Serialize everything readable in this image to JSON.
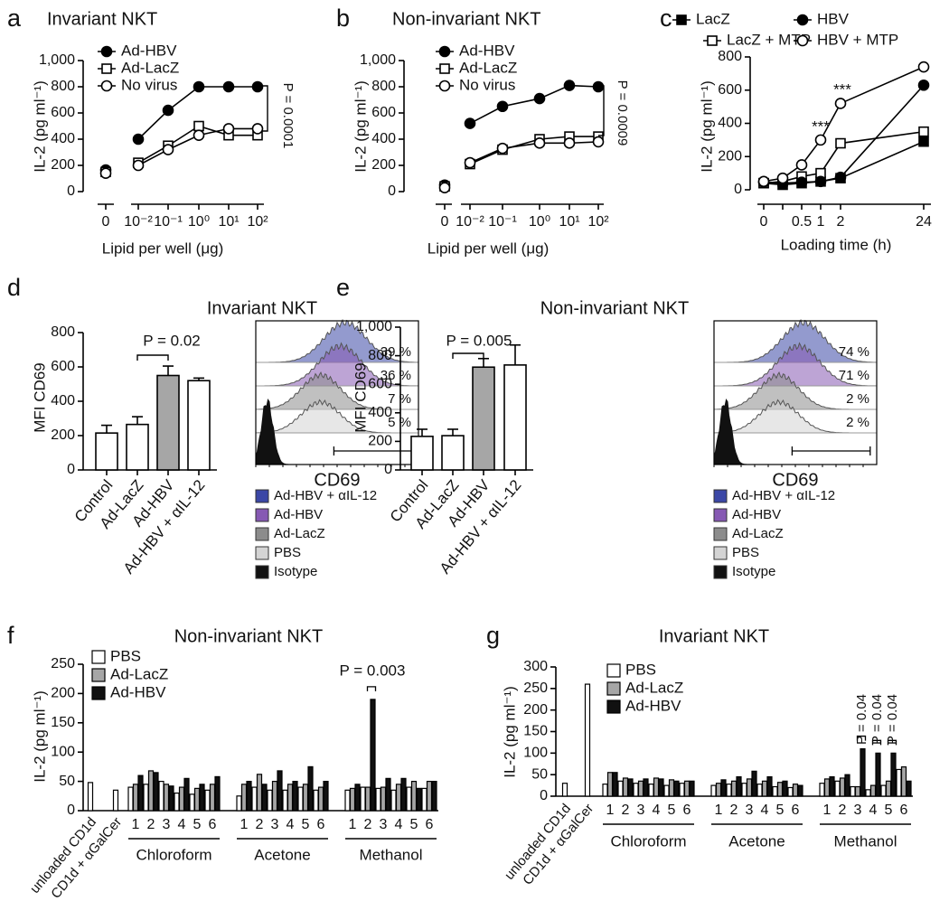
{
  "chart_data": [
    {
      "type": "line",
      "panel": "a",
      "title": "Invariant NKT",
      "xlabel": "Lipid per well (μg)",
      "ylabel": "IL-2 (pg ml⁻¹)",
      "categories": [
        "0",
        "10⁻²",
        "10⁻¹",
        "10⁰",
        "10¹",
        "10²"
      ],
      "series": [
        {
          "name": "Ad-HBV",
          "color": "#000000",
          "marker": "circle",
          "filled": true,
          "values": [
            165,
            400,
            620,
            800,
            800,
            800
          ]
        },
        {
          "name": "Ad-LacZ",
          "color": "#000000",
          "marker": "square",
          "filled": false,
          "values": [
            150,
            220,
            350,
            500,
            430,
            430
          ]
        },
        {
          "name": "No virus",
          "color": "#000000",
          "marker": "circle",
          "filled": false,
          "values": [
            140,
            200,
            320,
            430,
            480,
            480
          ]
        }
      ],
      "ylim": [
        0,
        1000
      ],
      "yticks": [
        0,
        200,
        400,
        600,
        800,
        {
          "value": 1000,
          "label": "1,000"
        }
      ],
      "annotations": [
        "P = 0.0001"
      ]
    },
    {
      "type": "line",
      "panel": "b",
      "title": "Non-invariant NKT",
      "xlabel": "Lipid per well (μg)",
      "ylabel": "IL-2 (pg ml⁻¹)",
      "categories": [
        "0",
        "10⁻²",
        "10⁻¹",
        "10⁰",
        "10¹",
        "10²"
      ],
      "series": [
        {
          "name": "Ad-HBV",
          "color": "#000000",
          "marker": "circle",
          "filled": true,
          "values": [
            50,
            520,
            650,
            710,
            810,
            800
          ]
        },
        {
          "name": "Ad-LacZ",
          "color": "#000000",
          "marker": "square",
          "filled": false,
          "values": [
            40,
            210,
            320,
            400,
            420,
            420
          ]
        },
        {
          "name": "No virus",
          "color": "#000000",
          "marker": "circle",
          "filled": false,
          "values": [
            30,
            220,
            330,
            370,
            370,
            380
          ]
        }
      ],
      "ylim": [
        0,
        1000
      ],
      "yticks": [
        0,
        200,
        400,
        600,
        800,
        {
          "value": 1000,
          "label": "1,000"
        }
      ],
      "annotations": [
        "P = 0.0009"
      ]
    },
    {
      "type": "line",
      "panel": "c",
      "xlabel": "Loading time (h)",
      "ylabel": "IL-2 (pg ml⁻¹)",
      "categories": [
        "0",
        null,
        "0.5",
        "1",
        "2",
        "24"
      ],
      "series": [
        {
          "name": "LacZ",
          "color": "#000000",
          "marker": "square",
          "filled": true,
          "values": [
            40,
            30,
            40,
            50,
            70,
            290
          ]
        },
        {
          "name": "LacZ + MTP",
          "color": "#000000",
          "marker": "square",
          "filled": false,
          "values": [
            40,
            50,
            80,
            100,
            280,
            350
          ]
        },
        {
          "name": "HBV",
          "color": "#000000",
          "marker": "circle",
          "filled": true,
          "values": [
            45,
            40,
            45,
            50,
            75,
            630
          ]
        },
        {
          "name": "HBV + MTP",
          "color": "#000000",
          "marker": "circle",
          "filled": false,
          "values": [
            50,
            70,
            150,
            300,
            520,
            740
          ]
        }
      ],
      "ylim": [
        0,
        800
      ],
      "yticks": [
        0,
        200,
        400,
        600,
        800
      ],
      "annotations": [
        "***",
        "***"
      ]
    },
    {
      "type": "bar",
      "panel": "d",
      "title": "Invariant NKT",
      "ylabel": "MFI CD69",
      "categories": [
        "Control",
        "Ad-LacZ",
        "Ad-HBV",
        "Ad-HBV + αIL-12"
      ],
      "values": [
        215,
        265,
        550,
        520
      ],
      "errors": [
        45,
        45,
        55,
        15
      ],
      "colors": [
        "#ffffff",
        "#ffffff",
        "#a6a6a6",
        "#ffffff"
      ],
      "ylim": [
        0,
        800
      ],
      "yticks": [
        0,
        200,
        400,
        600,
        800
      ],
      "annotations": [
        "P = 0.02"
      ],
      "inset": {
        "xlabel": "CD69",
        "values": [
          39,
          36,
          7,
          5
        ],
        "value_labels": [
          "39 %",
          "36 %",
          "7 %",
          "5 %"
        ],
        "series": [
          {
            "name": "Ad-HBV + αIL-12",
            "color": "#3b47a6"
          },
          {
            "name": "Ad-HBV",
            "color": "#8659b3"
          },
          {
            "name": "Ad-LacZ",
            "color": "#8c8c8c"
          },
          {
            "name": "PBS",
            "color": "#d4d4d4"
          },
          {
            "name": "Isotype",
            "color": "#111111"
          }
        ]
      }
    },
    {
      "type": "bar",
      "panel": "e",
      "title": "Non-invariant NKT",
      "ylabel": "MFI CD69",
      "categories": [
        "Control",
        "Ad-LacZ",
        "Ad-HBV",
        "Ad-HBV + αIL-12"
      ],
      "values": [
        235,
        240,
        720,
        735
      ],
      "errors": [
        50,
        45,
        60,
        140
      ],
      "colors": [
        "#ffffff",
        "#ffffff",
        "#a6a6a6",
        "#ffffff"
      ],
      "ylim": [
        0,
        1000
      ],
      "yticks": [
        0,
        200,
        400,
        600,
        800,
        {
          "value": 1000,
          "label": "1,000"
        }
      ],
      "annotations": [
        "P = 0.005"
      ],
      "inset": {
        "xlabel": "CD69",
        "values": [
          74,
          71,
          2,
          2
        ],
        "value_labels": [
          "74 %",
          "71 %",
          "2 %",
          "2 %"
        ],
        "series": [
          {
            "name": "Ad-HBV + αIL-12",
            "color": "#3b47a6"
          },
          {
            "name": "Ad-HBV",
            "color": "#8659b3"
          },
          {
            "name": "Ad-LacZ",
            "color": "#8c8c8c"
          },
          {
            "name": "PBS",
            "color": "#d4d4d4"
          },
          {
            "name": "Isotype",
            "color": "#111111"
          }
        ]
      }
    },
    {
      "type": "grouped_bar",
      "panel": "f",
      "title": "Non-invariant NKT",
      "ylabel": "IL-2 (pg ml⁻¹)",
      "categories": [
        "unloaded CD1d",
        "CD1d + αGalCer",
        "1",
        "2",
        "3",
        "4",
        "5",
        "6",
        "1",
        "2",
        "3",
        "4",
        "5",
        "6",
        "1",
        "2",
        "3",
        "4",
        "5",
        "6"
      ],
      "groups": [
        "Chloroform",
        "Acetone",
        "Methanol"
      ],
      "series": [
        {
          "name": "PBS",
          "color": "#ffffff",
          "values": [
            48,
            35,
            40,
            45,
            50,
            30,
            28,
            35,
            25,
            40,
            35,
            35,
            40,
            35,
            35,
            40,
            38,
            35,
            40,
            38
          ]
        },
        {
          "name": "Ad-LacZ",
          "color": "#a6a6a6",
          "values": [
            null,
            null,
            45,
            68,
            45,
            40,
            38,
            45,
            45,
            62,
            50,
            45,
            45,
            40,
            38,
            40,
            40,
            45,
            50,
            50
          ]
        },
        {
          "name": "Ad-HBV",
          "color": "#111111",
          "values": [
            null,
            null,
            60,
            65,
            42,
            55,
            45,
            58,
            50,
            45,
            68,
            50,
            75,
            50,
            45,
            190,
            55,
            55,
            38,
            50
          ]
        }
      ],
      "ylim": [
        0,
        250
      ],
      "yticks": [
        0,
        50,
        100,
        150,
        200,
        250
      ],
      "annotations": [
        "P = 0.003"
      ]
    },
    {
      "type": "grouped_bar",
      "panel": "g",
      "title": "Invariant NKT",
      "ylabel": "IL-2 (pg ml⁻¹)",
      "categories": [
        "unloaded CD1d",
        "CD1d + αGalCer",
        "1",
        "2",
        "3",
        "4",
        "5",
        "6",
        "1",
        "2",
        "3",
        "4",
        "5",
        "6",
        "1",
        "2",
        "3",
        "4",
        "5",
        "6"
      ],
      "groups": [
        "Chloroform",
        "Acetone",
        "Methanol"
      ],
      "series": [
        {
          "name": "PBS",
          "color": "#ffffff",
          "values": [
            30,
            260,
            28,
            35,
            30,
            28,
            25,
            30,
            25,
            28,
            30,
            28,
            22,
            20,
            30,
            35,
            22,
            15,
            25,
            62
          ]
        },
        {
          "name": "Ad-LacZ",
          "color": "#a6a6a6",
          "values": [
            null,
            null,
            55,
            42,
            35,
            42,
            38,
            35,
            30,
            35,
            40,
            35,
            32,
            28,
            40,
            42,
            22,
            25,
            35,
            68
          ]
        },
        {
          "name": "Ad-HBV",
          "color": "#111111",
          "values": [
            null,
            null,
            55,
            40,
            40,
            40,
            35,
            35,
            38,
            45,
            58,
            45,
            35,
            25,
            45,
            50,
            110,
            100,
            100,
            35
          ]
        }
      ],
      "ylim": [
        0,
        300
      ],
      "yticks": [
        0,
        50,
        100,
        150,
        200,
        250,
        300
      ],
      "annotations": [
        "P = 0.04",
        "P = 0.04",
        "P = 0.04"
      ]
    }
  ]
}
